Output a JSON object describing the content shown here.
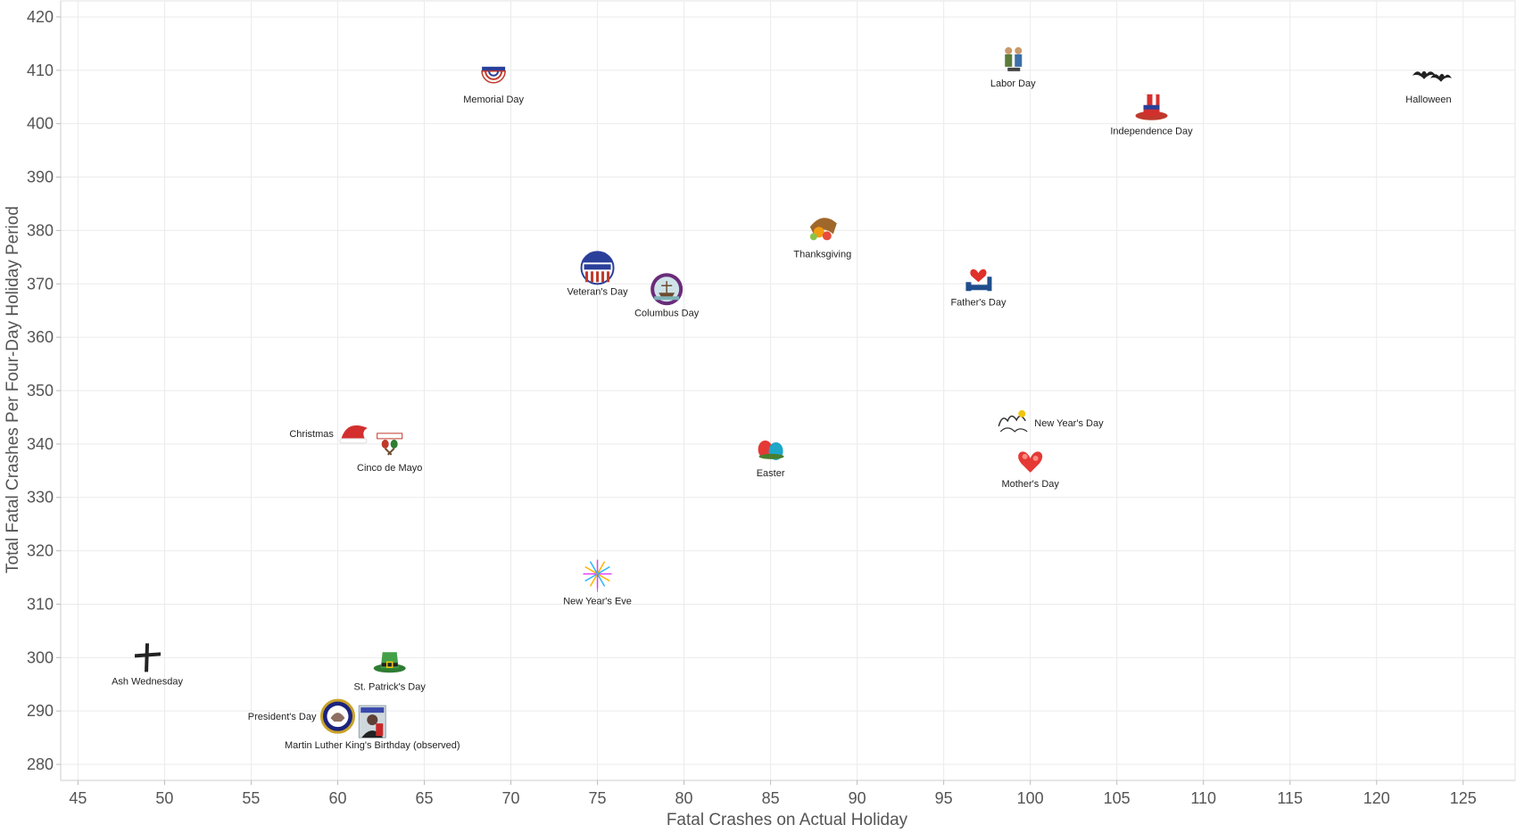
{
  "chart_data": {
    "type": "scatter",
    "xlabel": "Fatal Crashes on Actual Holiday",
    "ylabel": "Total Fatal Crashes Per Four-Day Holiday Period",
    "xlim": [
      44,
      128
    ],
    "ylim": [
      277,
      423
    ],
    "xticks": [
      45,
      50,
      55,
      60,
      65,
      70,
      75,
      80,
      85,
      90,
      95,
      100,
      105,
      110,
      115,
      120,
      125
    ],
    "yticks": [
      280,
      290,
      300,
      310,
      320,
      330,
      340,
      350,
      360,
      370,
      380,
      390,
      400,
      410,
      420
    ],
    "grid": true,
    "points": [
      {
        "name": "Memorial Day",
        "x": 69,
        "y": 409,
        "icon": "bunting-icon",
        "label_pos": "below"
      },
      {
        "name": "Labor Day",
        "x": 99,
        "y": 412,
        "icon": "workers-icon",
        "label_pos": "below"
      },
      {
        "name": "Independence Day",
        "x": 107,
        "y": 403,
        "icon": "uncle-sam-hat-icon",
        "label_pos": "below"
      },
      {
        "name": "Halloween",
        "x": 123,
        "y": 409,
        "icon": "bats-icon",
        "label_pos": "below"
      },
      {
        "name": "Thanksgiving",
        "x": 88,
        "y": 380,
        "icon": "cornucopia-icon",
        "label_pos": "below"
      },
      {
        "name": "Veteran's Day",
        "x": 75,
        "y": 373,
        "icon": "veterans-badge-icon",
        "label_pos": "below"
      },
      {
        "name": "Columbus Day",
        "x": 79,
        "y": 369,
        "icon": "ship-medallion-icon",
        "label_pos": "below"
      },
      {
        "name": "Father's Day",
        "x": 97,
        "y": 371,
        "icon": "heart-chair-icon",
        "label_pos": "below"
      },
      {
        "name": "Christmas",
        "x": 61,
        "y": 342,
        "icon": "santa-hat-icon",
        "label_pos": "left"
      },
      {
        "name": "Cinco de Mayo",
        "x": 63,
        "y": 340,
        "icon": "maracas-icon",
        "label_pos": "below"
      },
      {
        "name": "Easter",
        "x": 85,
        "y": 339,
        "icon": "easter-eggs-icon",
        "label_pos": "below"
      },
      {
        "name": "New Year's Day",
        "x": 99,
        "y": 344,
        "icon": "happy-new-year-icon",
        "label_pos": "right"
      },
      {
        "name": "Mother's Day",
        "x": 100,
        "y": 337,
        "icon": "heart-bouquet-icon",
        "label_pos": "below"
      },
      {
        "name": "New Year's Eve",
        "x": 75,
        "y": 315,
        "icon": "fireworks-icon",
        "label_pos": "below"
      },
      {
        "name": "Ash Wednesday",
        "x": 49,
        "y": 300,
        "icon": "cross-icon",
        "label_pos": "below"
      },
      {
        "name": "St. Patrick's Day",
        "x": 63,
        "y": 299,
        "icon": "leprechaun-hat-icon",
        "label_pos": "below"
      },
      {
        "name": "President's Day",
        "x": 60,
        "y": 289,
        "icon": "presidential-seal-icon",
        "label_pos": "left"
      },
      {
        "name": "Martin Luther King's Birthday (observed)",
        "x": 62,
        "y": 288,
        "icon": "mlk-portrait-icon",
        "label_pos": "below"
      }
    ]
  },
  "colors": {
    "grid": "#ebebeb",
    "axis": "#cccccc",
    "text": "#555555",
    "label": "#222222"
  }
}
